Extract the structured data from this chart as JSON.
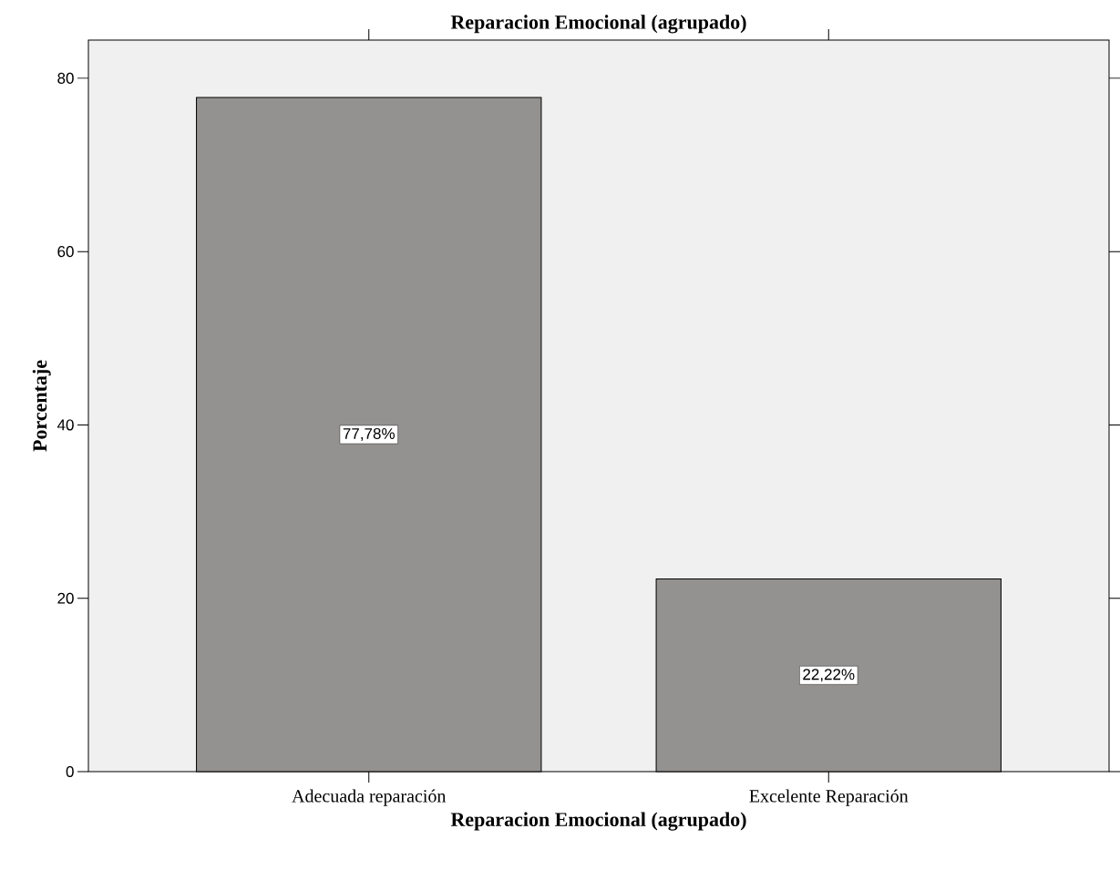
{
  "chart_data": {
    "type": "bar",
    "title": "Reparacion Emocional (agrupado)",
    "xlabel": "Reparacion Emocional (agrupado)",
    "ylabel": "Porcentaje",
    "categories": [
      "Adecuada reparación",
      "Excelente Reparación"
    ],
    "values": [
      77.78,
      22.22
    ],
    "value_labels": [
      "77,78%",
      "22,22%"
    ],
    "color": "#949191",
    "ylim": [
      0,
      84.4
    ],
    "yticks": [
      0,
      20,
      40,
      60,
      80
    ]
  }
}
